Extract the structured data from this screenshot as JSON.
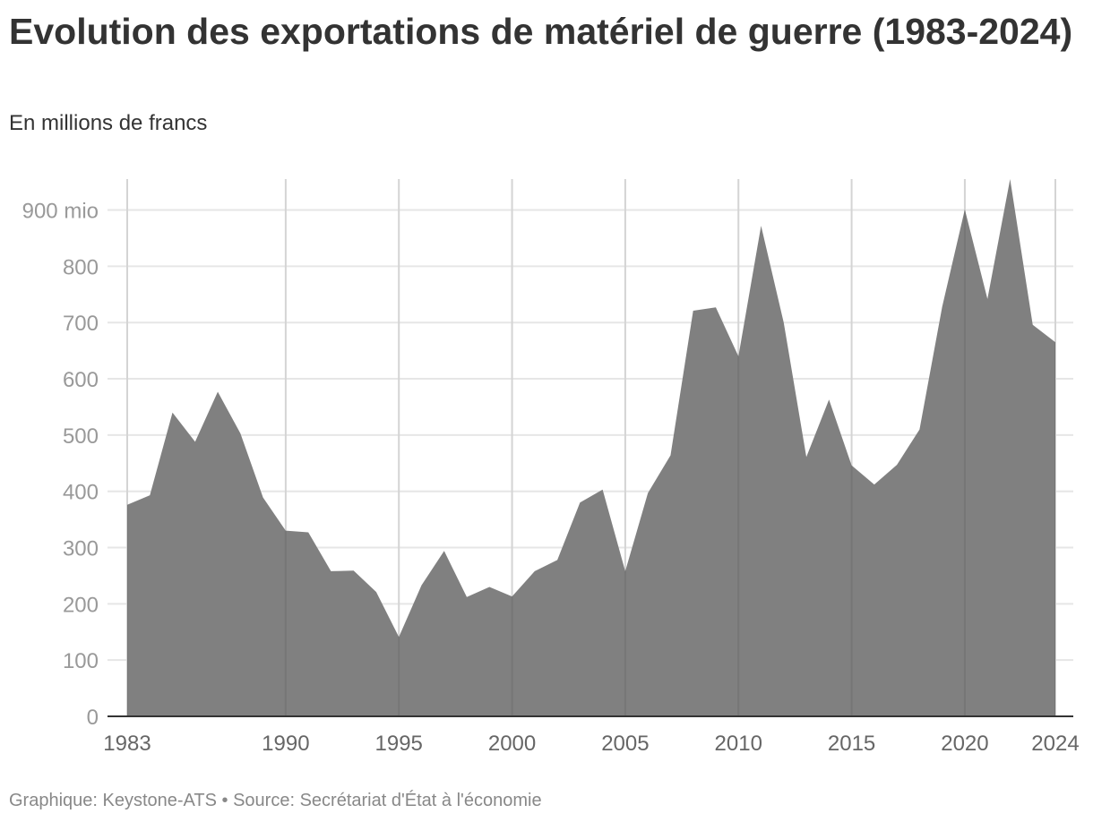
{
  "title": "Evolution des exportations de matériel de guerre (1983-2024)",
  "subtitle": "En millions de francs",
  "footer": "Graphique: Keystone-ATS • Source: Secrétariat d'État à l'économie",
  "colors": {
    "area": "#808080",
    "grid": "#e6e6e6",
    "axis": "#333333"
  },
  "chart_data": {
    "type": "area",
    "title": "Evolution des exportations de matériel de guerre (1983-2024)",
    "subtitle": "En millions de francs",
    "xlabel": "",
    "ylabel": "En millions de francs",
    "ylim": [
      0,
      955
    ],
    "y_ticks": [
      0,
      100,
      200,
      300,
      400,
      500,
      600,
      700,
      800,
      900
    ],
    "y_tick_labels": [
      "0",
      "100",
      "200",
      "300",
      "400",
      "500",
      "600",
      "700",
      "800",
      "900 mio"
    ],
    "x_ticks": [
      1983,
      1990,
      1995,
      2000,
      2005,
      2010,
      2015,
      2020,
      2024
    ],
    "x_tick_labels": [
      "1983",
      "1990",
      "1995",
      "2000",
      "2005",
      "2010",
      "2015",
      "2020",
      "2024"
    ],
    "grid": true,
    "series": [
      {
        "name": "Exportations de matériel de guerre",
        "x": [
          1983,
          1984,
          1985,
          1986,
          1987,
          1988,
          1989,
          1990,
          1991,
          1992,
          1993,
          1994,
          1995,
          1996,
          1997,
          1998,
          1999,
          2000,
          2001,
          2002,
          2003,
          2004,
          2005,
          2006,
          2007,
          2008,
          2009,
          2010,
          2011,
          2012,
          2013,
          2014,
          2015,
          2016,
          2017,
          2018,
          2019,
          2020,
          2021,
          2022,
          2023,
          2024
        ],
        "values": [
          376,
          393,
          540,
          488,
          577,
          503,
          389,
          330,
          327,
          258,
          259,
          221,
          141,
          233,
          294,
          212,
          230,
          213,
          258,
          278,
          380,
          403,
          258,
          397,
          464,
          721,
          727,
          640,
          872,
          700,
          461,
          563,
          446,
          412,
          447,
          510,
          728,
          901,
          742,
          955,
          696,
          665
        ]
      }
    ]
  }
}
